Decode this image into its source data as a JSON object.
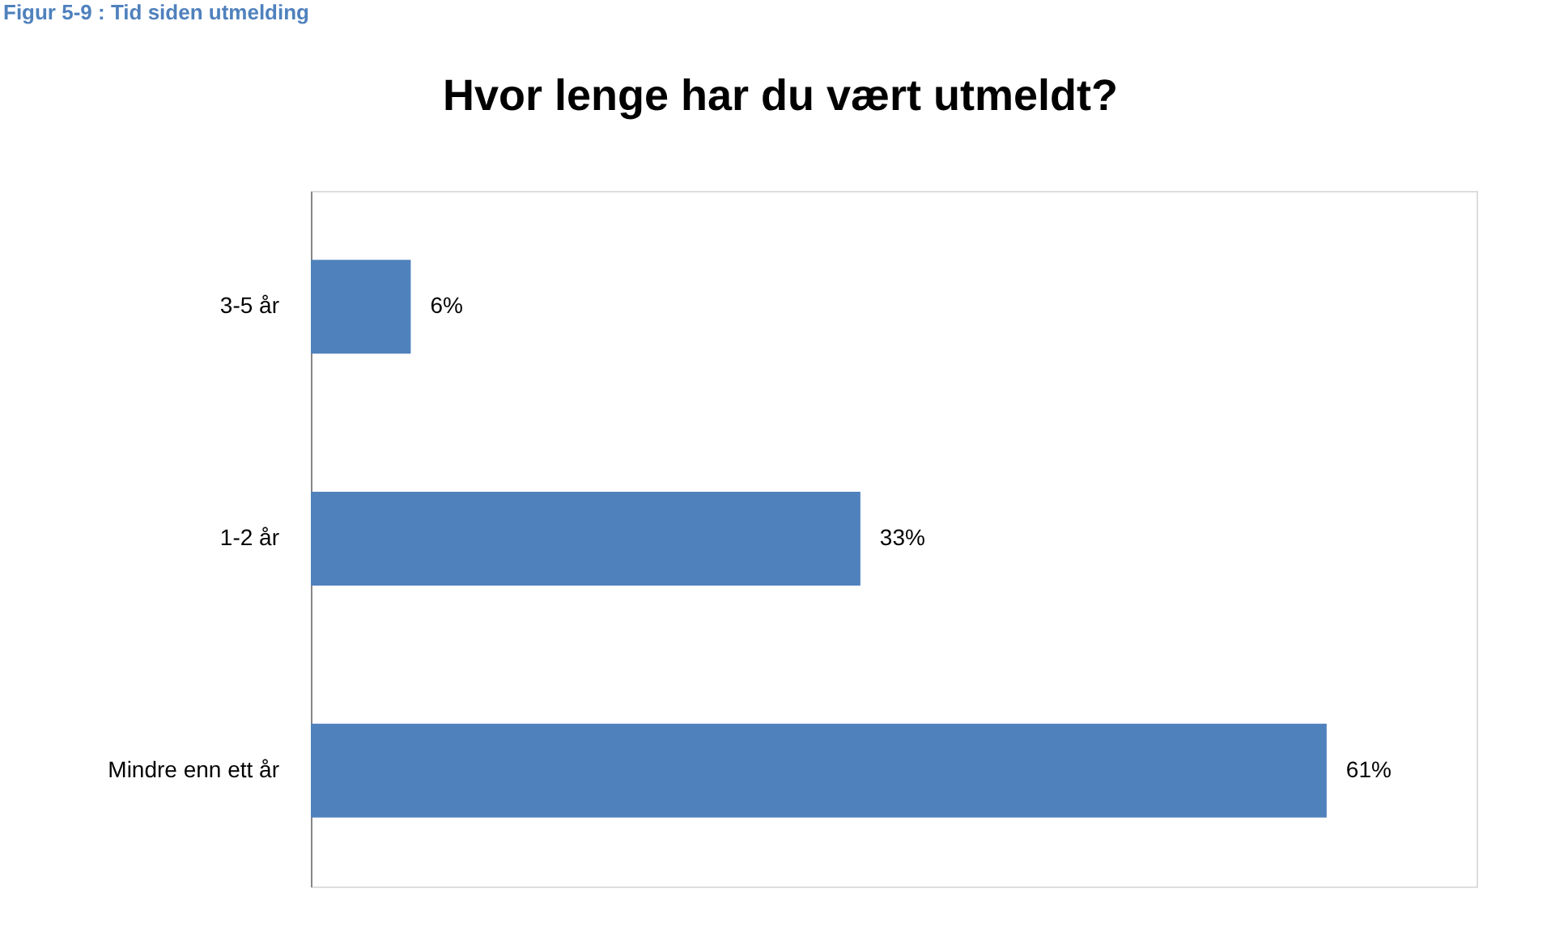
{
  "chart_data": {
    "type": "bar",
    "orientation": "horizontal",
    "title": "Hvor lenge har du vært utmeldt?",
    "categories": [
      "3-5 år",
      "1-2 år",
      "Mindre enn ett år"
    ],
    "values": [
      6,
      33,
      61
    ],
    "color": "#4f81bd",
    "value_labels": [
      "6%",
      "33%",
      "61%"
    ],
    "xlim": [
      0,
      70
    ],
    "tick_labels": "y",
    "grid": false,
    "annotations": [
      "Figur 5-9 : Tid siden utmelding"
    ]
  }
}
